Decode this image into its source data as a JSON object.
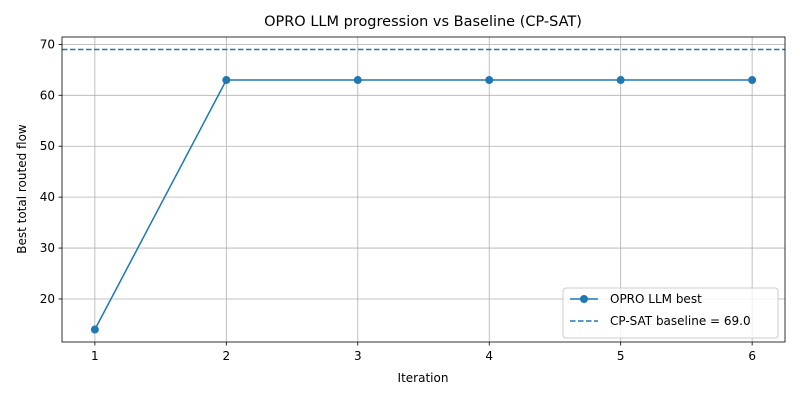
{
  "chart_data": {
    "type": "line",
    "title": "OPRO LLM progression vs Baseline (CP-SAT)",
    "xlabel": "Iteration",
    "ylabel": "Best total routed flow",
    "x": [
      1,
      2,
      3,
      4,
      5,
      6
    ],
    "xticks": [
      "1",
      "2",
      "3",
      "4",
      "5",
      "6"
    ],
    "yticks": [
      "20",
      "30",
      "40",
      "50",
      "60",
      "70"
    ],
    "xlim": [
      0.75,
      6.25
    ],
    "ylim": [
      11.55,
      71.45
    ],
    "grid": true,
    "legend_position": "lower-right",
    "series": [
      {
        "name": "OPRO LLM best",
        "values": [
          14,
          63,
          63,
          63,
          63,
          63
        ],
        "style": "solid",
        "marker": "circle",
        "color": "#1f77b4"
      }
    ],
    "baseline": {
      "name": "CP-SAT baseline = 69.0",
      "value": 69.0,
      "style": "dashed",
      "color": "#1f77b4"
    }
  }
}
